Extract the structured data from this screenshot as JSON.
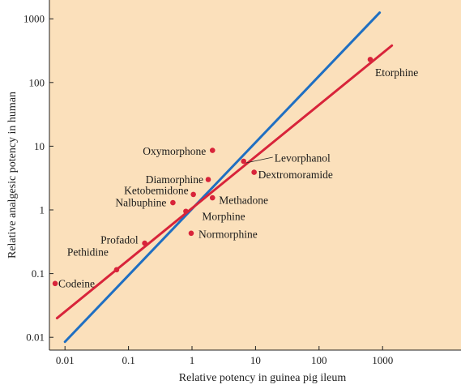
{
  "chart_data": {
    "type": "scatter",
    "title": "",
    "xlabel": "Relative potency in guinea pig ileum",
    "ylabel": "Relative analgesic potency in human",
    "xscale": "log",
    "yscale": "log",
    "xlim": [
      0.006,
      6000
    ],
    "ylim": [
      0.006,
      1500
    ],
    "x_ticks": [
      "0.01",
      "0.1",
      "1",
      "10",
      "100",
      "1000"
    ],
    "y_ticks": [
      "0.01",
      "0.1",
      "1",
      "10",
      "100",
      "1000"
    ],
    "grid": false,
    "points": [
      {
        "label": "Codeine",
        "x": 0.007,
        "y": 0.07
      },
      {
        "label": "Pethidine",
        "x": 0.065,
        "y": 0.115
      },
      {
        "label": "Profadol",
        "x": 0.18,
        "y": 0.3
      },
      {
        "label": "Nalbuphine",
        "x": 0.5,
        "y": 1.3
      },
      {
        "label": "Morphine",
        "x": 0.8,
        "y": 0.95
      },
      {
        "label": "Ketobemidone",
        "x": 1.05,
        "y": 1.75
      },
      {
        "label": "Normorphine",
        "x": 0.97,
        "y": 0.43
      },
      {
        "label": "Methadone",
        "x": 2.1,
        "y": 1.55
      },
      {
        "label": "Diamorphine",
        "x": 1.8,
        "y": 3.0
      },
      {
        "label": "Oxymorphone",
        "x": 2.1,
        "y": 8.6
      },
      {
        "label": "Levorphanol",
        "x": 6.5,
        "y": 5.8
      },
      {
        "label": "Dextromoramide",
        "x": 9.5,
        "y": 3.9
      },
      {
        "label": "Etorphine",
        "x": 640,
        "y": 230
      }
    ],
    "lines": [
      {
        "kind": "identity",
        "color": "#1f6fc2",
        "x": [
          0.01,
          900
        ],
        "y": [
          0.0085,
          1250
        ]
      },
      {
        "kind": "fit",
        "color": "#d8243a",
        "x": [
          0.0075,
          1400
        ],
        "y": [
          0.02,
          380
        ]
      }
    ],
    "colors": {
      "background": "#fbe0bb",
      "point": "#d8243a",
      "identity_line": "#1f6fc2",
      "fit_line": "#d8243a",
      "axis": "#222222"
    }
  }
}
